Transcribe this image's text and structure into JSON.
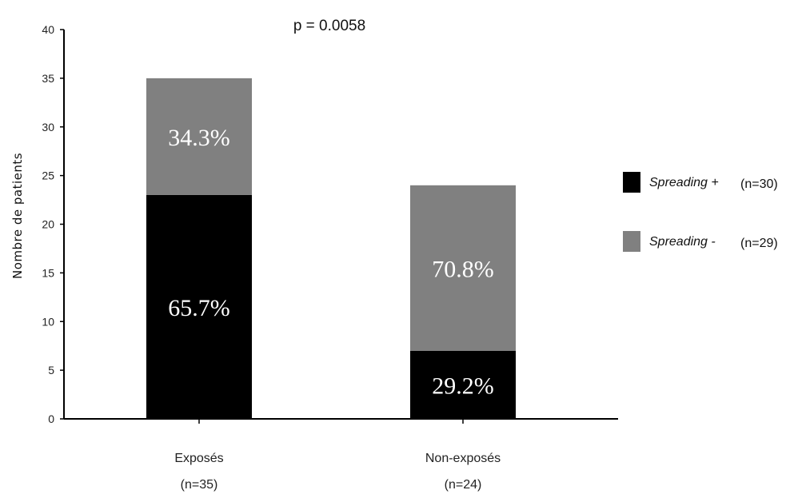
{
  "chart_data": {
    "type": "bar",
    "stacked": true,
    "annotation": "p = 0.0058",
    "ylabel": "Nombre de patients",
    "ylim": [
      0,
      40
    ],
    "yticks": [
      0,
      5,
      10,
      15,
      20,
      25,
      30,
      35,
      40
    ],
    "categories": [
      {
        "label": "Exposés",
        "sublabel": "(n=35)"
      },
      {
        "label": "Non-exposés",
        "sublabel": "(n=24)"
      }
    ],
    "series": [
      {
        "name": "Spreading +",
        "n_label": "(n=30)",
        "color": "#000000",
        "values": [
          23,
          7
        ],
        "labels": [
          "65.7%",
          "29.2%"
        ]
      },
      {
        "name": "Spreading -",
        "n_label": "(n=29)",
        "color": "#808080",
        "values": [
          12,
          17
        ],
        "labels": [
          "34.3%",
          "70.8%"
        ]
      }
    ],
    "legend_position": "right",
    "grid": false
  }
}
